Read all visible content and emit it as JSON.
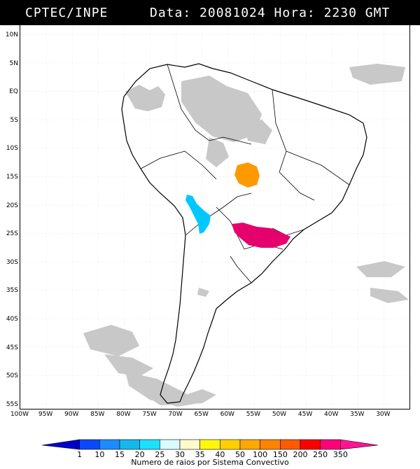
{
  "header": {
    "agency": "CPTEC/INPE",
    "stamp": "Data: 20081024 Hora: 2230 GMT"
  },
  "lat_labels": [
    "10N",
    "5N",
    "EQ",
    "5S",
    "10S",
    "15S",
    "20S",
    "25S",
    "30S",
    "35S",
    "40S",
    "45S",
    "50S",
    "55S"
  ],
  "lon_labels": [
    "100W",
    "95W",
    "90W",
    "85W",
    "80W",
    "75W",
    "70W",
    "65W",
    "60W",
    "55W",
    "50W",
    "45W",
    "40W",
    "35W",
    "30W"
  ],
  "legend": {
    "values": [
      "1",
      "10",
      "15",
      "20",
      "25",
      "30",
      "35",
      "40",
      "50",
      "100",
      "150",
      "200",
      "250",
      "350"
    ],
    "colors": [
      "#0000cc",
      "#0a49ff",
      "#1b8cff",
      "#14b8ee",
      "#1ce0ff",
      "#d8fbff",
      "#fffacc",
      "#fff60a",
      "#ffd000",
      "#ffa800",
      "#ff8200",
      "#ff5a00",
      "#ff0000",
      "#ff007a",
      "#ff1493"
    ],
    "caption": "Numero de raios por Sistema Convectivo"
  },
  "map_features": {
    "colors": {
      "cloud": "#c8c8c8",
      "orange_system": "#ff9900",
      "cyan_system": "#00c8ff",
      "magenta_system": "#e6006e"
    },
    "systems": [
      {
        "name": "central-brazil-system",
        "color_key": "orange_system",
        "level": "50-100"
      },
      {
        "name": "andes-system",
        "color_key": "cyan_system",
        "level": "15-20"
      },
      {
        "name": "southern-brazil-system",
        "color_key": "magenta_system",
        "level": "350"
      }
    ]
  }
}
